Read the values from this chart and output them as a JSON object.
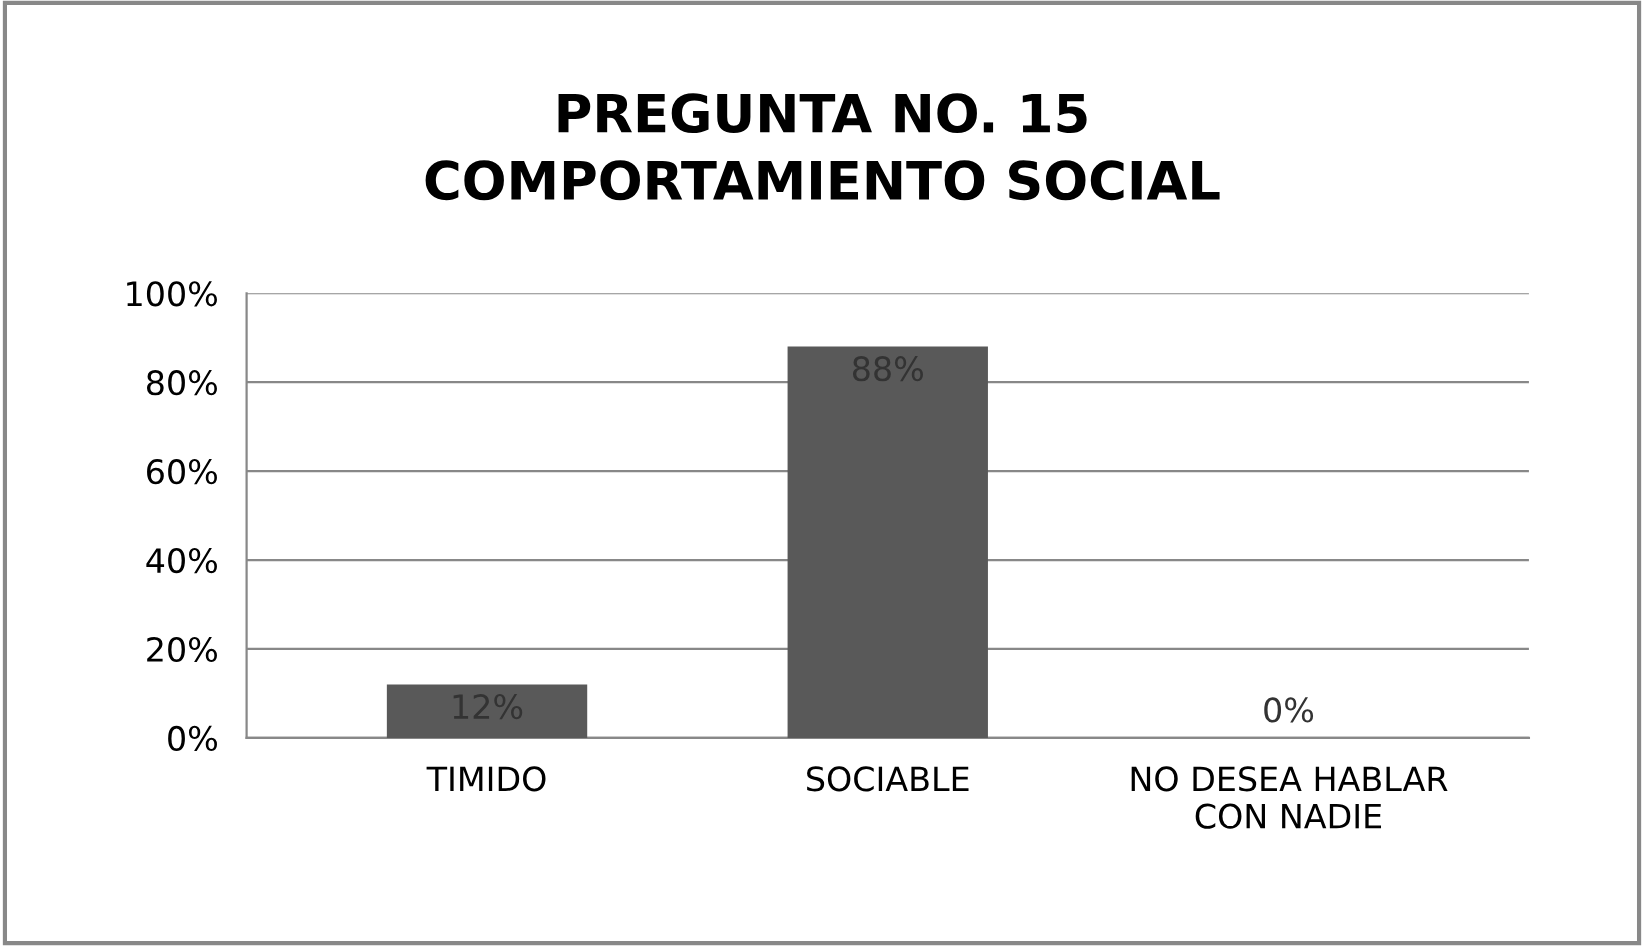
{
  "chart_data": {
    "type": "bar",
    "title": "PREGUNTA NO. 15\nCOMPORTAMIENTO SOCIAL",
    "categories": [
      "TIMIDO",
      "SOCIABLE",
      "NO DESEA HABLAR\nCON NADIE"
    ],
    "values": [
      12,
      88,
      0
    ],
    "value_labels": [
      "12%",
      "88%",
      "0%"
    ],
    "color": "#595959",
    "ylim": [
      0,
      100
    ],
    "yticks": [
      {
        "value": 0,
        "label": "0%"
      },
      {
        "value": 20,
        "label": "20%"
      },
      {
        "value": 40,
        "label": "40%"
      },
      {
        "value": 60,
        "label": "60%"
      },
      {
        "value": 80,
        "label": "80%"
      },
      {
        "value": 100,
        "label": "100%"
      }
    ],
    "grid": "y"
  }
}
